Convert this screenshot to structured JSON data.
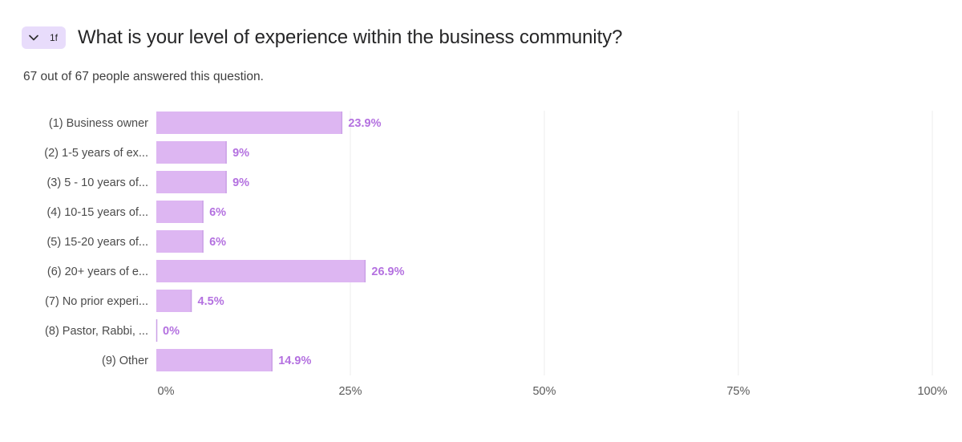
{
  "question": {
    "number": "1f",
    "title": "What is your level of experience within the business community?",
    "subtitle": "67 out of 67 people answered this question.",
    "collapse_icon": "chevron-down-icon"
  },
  "colors": {
    "tag_bg": "#e8dcfb",
    "bar": "#ddb6f2",
    "bar_edge": "#caa0e6",
    "value_text": "#b471e0",
    "grid": "#ececec"
  },
  "chart_data": {
    "type": "bar",
    "orientation": "horizontal",
    "categories": [
      "(1) Business owner",
      "(2) 1-5 years of ex...",
      "(3) 5 - 10 years of...",
      "(4) 10-15 years of...",
      "(5) 15-20 years of...",
      "(6) 20+ years of e...",
      "(7) No prior experi...",
      "(8) Pastor, Rabbi, ...",
      "(9) Other"
    ],
    "values": [
      23.9,
      9,
      9,
      6,
      6,
      26.9,
      4.5,
      0,
      14.9
    ],
    "value_labels": [
      "23.9%",
      "9%",
      "9%",
      "6%",
      "6%",
      "26.9%",
      "4.5%",
      "0%",
      "14.9%"
    ],
    "xlim": [
      0,
      100
    ],
    "xticks": [
      0,
      25,
      50,
      75,
      100
    ],
    "xtick_labels": [
      "0%",
      "25%",
      "50%",
      "75%",
      "100%"
    ],
    "grid": true,
    "legend": "none"
  }
}
